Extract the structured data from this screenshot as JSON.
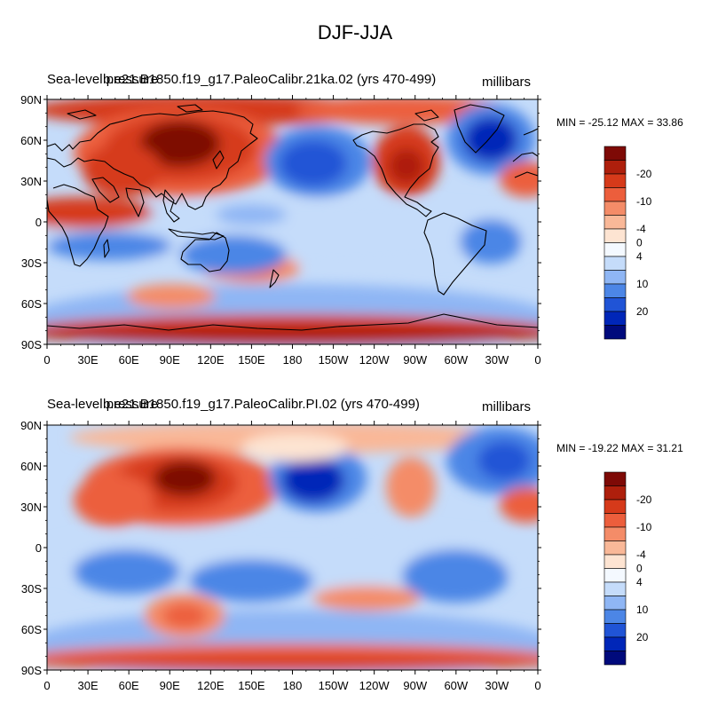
{
  "figure": {
    "title": "DJF-JJA"
  },
  "colorbar": {
    "colors": [
      "#000a7c",
      "#0026b8",
      "#2054d6",
      "#4c86e6",
      "#8fb6f4",
      "#c5dcfa",
      "#f4f9ff",
      "#fde4d2",
      "#f9b898",
      "#f48c68",
      "#ec5e3c",
      "#d63a1a",
      "#ae1f0c",
      "#7e0a06"
    ],
    "labels": [
      "-20",
      "-10",
      "-4",
      "0",
      "4",
      "10",
      "20"
    ]
  },
  "axes": {
    "lat_labels": [
      "90N",
      "60N",
      "30N",
      "0",
      "30S",
      "60S",
      "90S"
    ],
    "lon_labels": [
      "0",
      "30E",
      "60E",
      "90E",
      "120E",
      "150E",
      "180",
      "150W",
      "120W",
      "90W",
      "60W",
      "30W",
      "0"
    ]
  },
  "panels": [
    {
      "left_label": "Sea-level pressure",
      "case_label": "b.e21.B1850.f19_g17.PaleoCalibr.21ka.02 (yrs 470-499)",
      "units": "millibars",
      "stats": "MIN = -25.12 MAX =  33.86"
    },
    {
      "left_label": "Sea-level pressure",
      "case_label": "b.e21.B1850.f19_g17.PaleoCalibr.PI.02 (yrs 470-499)",
      "units": "millibars",
      "stats": "MIN = -19.22 MAX =  31.21"
    }
  ]
}
